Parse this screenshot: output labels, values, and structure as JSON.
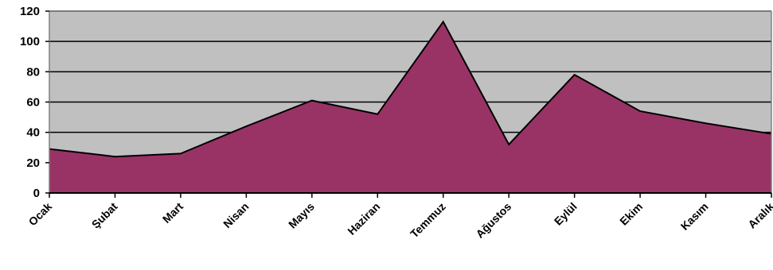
{
  "chart_data": {
    "type": "area",
    "title": "",
    "xlabel": "",
    "ylabel": "",
    "categories": [
      "Ocak",
      "Şubat",
      "Mart",
      "Nisan",
      "Mayıs",
      "Haziran",
      "Temmuz",
      "Ağustos",
      "Eylül",
      "Ekim",
      "Kasım",
      "Aralık"
    ],
    "series": [
      {
        "values": [
          29,
          24,
          26,
          44,
          61,
          52,
          113,
          32,
          78,
          54,
          46,
          39
        ]
      }
    ],
    "ylim": [
      0,
      120
    ],
    "yticks": [
      0,
      20,
      40,
      60,
      80,
      100,
      120
    ],
    "grid": true,
    "legend": "none",
    "colors": {
      "plot_background": "#c0c0c0",
      "area_fill": "#993366",
      "line": "#000000",
      "gridline": "#000000"
    }
  }
}
